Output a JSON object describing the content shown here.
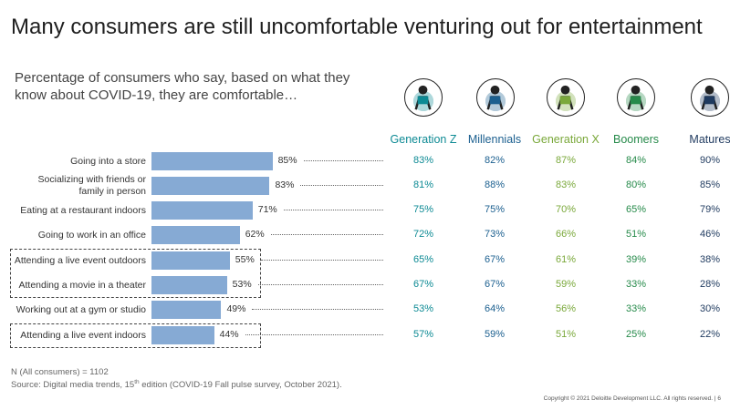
{
  "title": "Many consumers are still uncomfortable venturing out for entertainment",
  "subtitle": "Percentage of consumers who say, based on what they know about COVID-19, they are comfortable…",
  "generations": [
    {
      "name": "Generation Z",
      "color": "#0d8a94",
      "icon": "person-walking-phone-icon"
    },
    {
      "name": "Millennials",
      "color": "#1b5f8f",
      "icon": "person-laptop-icon"
    },
    {
      "name": "Generation X",
      "color": "#7aa83a",
      "icon": "person-desk-icon"
    },
    {
      "name": "Boomers",
      "color": "#268a4a",
      "icon": "person-reading-icon"
    },
    {
      "name": "Matures",
      "color": "#1f3a5f",
      "icon": "person-newspaper-icon"
    }
  ],
  "chart_data": {
    "type": "bar",
    "orientation": "horizontal",
    "title": "Percentage of consumers who say, based on what they know about COVID-19, they are comfortable…",
    "categories": [
      "Going into a store",
      "Socializing with friends or family in person",
      "Eating at a restaurant indoors",
      "Going to work in an office",
      "Attending a live event outdoors",
      "Attending a movie in a theater",
      "Working out at a gym or studio",
      "Attending a live event indoors"
    ],
    "category_lines": [
      [
        "Going into a store"
      ],
      [
        "Socializing with friends or",
        "family in person"
      ],
      [
        "Eating at a restaurant indoors"
      ],
      [
        "Going to work in an office"
      ],
      [
        "Attending a live event outdoors"
      ],
      [
        "Attending a movie in a theater"
      ],
      [
        "Working out at a gym or studio"
      ],
      [
        "Attending a live event indoors"
      ]
    ],
    "values": [
      85,
      83,
      71,
      62,
      55,
      53,
      49,
      44
    ],
    "value_labels": [
      "85%",
      "83%",
      "71%",
      "62%",
      "55%",
      "53%",
      "49%",
      "44%"
    ],
    "xlim": [
      0,
      100
    ],
    "highlighted_groups": [
      [
        4,
        5
      ],
      [
        7
      ]
    ],
    "series": [
      {
        "name": "Generation Z",
        "values": [
          83,
          81,
          75,
          72,
          65,
          67,
          53,
          57
        ]
      },
      {
        "name": "Millennials",
        "values": [
          82,
          88,
          75,
          73,
          67,
          67,
          64,
          59
        ]
      },
      {
        "name": "Generation X",
        "values": [
          87,
          83,
          70,
          66,
          61,
          59,
          56,
          51
        ]
      },
      {
        "name": "Boomers",
        "values": [
          84,
          80,
          65,
          51,
          39,
          33,
          33,
          25
        ]
      },
      {
        "name": "Matures",
        "values": [
          90,
          85,
          79,
          46,
          38,
          28,
          30,
          22
        ]
      }
    ]
  },
  "footnote": {
    "sample": "N (All consumers) = 1102",
    "source_prefix": "Source: Digital media trends, 15",
    "source_sup": "th",
    "source_suffix": " edition (COVID-19 Fall pulse survey, October 2021)."
  },
  "copyright": "Copyright © 2021 Deloitte Development LLC. All rights reserved.   |   6"
}
